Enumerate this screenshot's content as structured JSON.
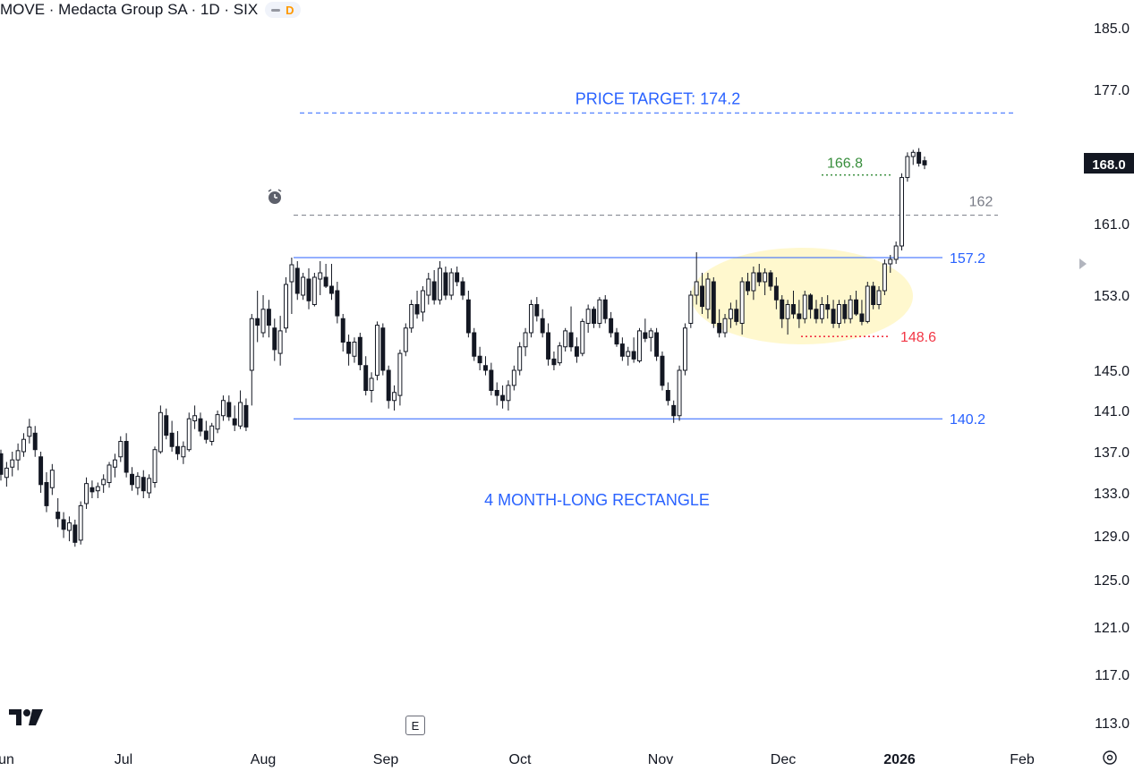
{
  "header": {
    "title": "MOVE · Medacta Group SA · 1D · SIX",
    "interval_badge": "D"
  },
  "chart_data": {
    "type": "candlestick",
    "ylim": [
      111,
      187
    ],
    "y_ticks": [
      "185.0",
      "177.0",
      "161.0",
      "153.0",
      "145.0",
      "141.0",
      "137.0",
      "133.0",
      "129.0",
      "125.0",
      "121.0",
      "117.0",
      "113.0"
    ],
    "y_tick_values": [
      185,
      177,
      161,
      153,
      145,
      141,
      137,
      133,
      129,
      125,
      121,
      117,
      113
    ],
    "x_ticks": [
      "Jun",
      "Jul",
      "Aug",
      "Sep",
      "Oct",
      "Nov",
      "Dec",
      "2026",
      "Feb"
    ],
    "last_price": "168.0",
    "levels": [
      {
        "name": "price-target",
        "value": 174.2,
        "label": "PRICE TARGET: 174.2",
        "style": "dashed",
        "color": "#2962ff"
      },
      {
        "name": "level-166-8",
        "value": 166.8,
        "label": "166.8",
        "style": "dotted",
        "color": "#388e3c"
      },
      {
        "name": "level-162",
        "value": 162.0,
        "label": "162",
        "style": "dashed",
        "color": "#787b86"
      },
      {
        "name": "rectangle-top",
        "value": 157.2,
        "label": "157.2",
        "style": "solid",
        "color": "#2962ff"
      },
      {
        "name": "level-148-6",
        "value": 148.6,
        "label": "148.6",
        "style": "dotted",
        "color": "#f23645"
      },
      {
        "name": "rectangle-bottom",
        "value": 140.2,
        "label": "140.2",
        "style": "solid",
        "color": "#2962ff"
      }
    ],
    "annotation": "4 MONTH-LONG RECTANGLE",
    "candles": [
      [
        136.8,
        137.2,
        134.2,
        134.8
      ],
      [
        134.5,
        136.0,
        133.6,
        135.4
      ],
      [
        135.5,
        137.0,
        134.6,
        136.2
      ],
      [
        136.2,
        137.8,
        135.2,
        137.1
      ],
      [
        137.0,
        138.8,
        136.5,
        138.2
      ],
      [
        138.5,
        140.2,
        137.8,
        139.4
      ],
      [
        138.8,
        139.5,
        136.5,
        137.2
      ],
      [
        136.5,
        137.0,
        133.0,
        133.8
      ],
      [
        134.0,
        135.0,
        131.2,
        131.8
      ],
      [
        133.5,
        135.8,
        132.8,
        135.2
      ],
      [
        131.2,
        132.5,
        129.8,
        130.6
      ],
      [
        130.5,
        131.2,
        128.8,
        129.6
      ],
      [
        129.5,
        130.8,
        128.5,
        130.2
      ],
      [
        130.0,
        130.5,
        128.0,
        128.4
      ],
      [
        128.6,
        132.2,
        128.2,
        131.8
      ],
      [
        132.0,
        134.5,
        131.5,
        133.9
      ],
      [
        133.5,
        134.2,
        132.5,
        133.1
      ],
      [
        133.2,
        134.0,
        132.5,
        133.6
      ],
      [
        133.8,
        134.8,
        133.0,
        134.3
      ],
      [
        134.0,
        136.0,
        133.5,
        135.7
      ],
      [
        135.5,
        136.8,
        134.5,
        136.2
      ],
      [
        136.5,
        138.5,
        136.0,
        138.0
      ],
      [
        138.0,
        138.8,
        134.5,
        135.0
      ],
      [
        134.8,
        135.5,
        133.2,
        133.8
      ],
      [
        133.5,
        135.0,
        132.8,
        134.6
      ],
      [
        134.5,
        135.2,
        132.5,
        133.2
      ],
      [
        133.0,
        134.8,
        132.5,
        134.4
      ],
      [
        134.0,
        137.5,
        133.5,
        137.2
      ],
      [
        137.0,
        141.5,
        136.8,
        140.8
      ],
      [
        140.5,
        141.2,
        138.2,
        138.6
      ],
      [
        138.8,
        140.0,
        137.0,
        137.5
      ],
      [
        137.5,
        139.0,
        136.2,
        136.8
      ],
      [
        136.5,
        138.0,
        135.8,
        137.5
      ],
      [
        137.2,
        140.8,
        137.0,
        140.2
      ],
      [
        140.0,
        141.5,
        139.2,
        140.5
      ],
      [
        140.2,
        140.8,
        138.5,
        139.0
      ],
      [
        139.0,
        140.0,
        137.8,
        138.2
      ],
      [
        138.0,
        139.8,
        137.6,
        139.5
      ],
      [
        139.2,
        141.0,
        138.8,
        140.6
      ],
      [
        140.5,
        142.5,
        140.0,
        142.0
      ],
      [
        141.8,
        142.5,
        140.0,
        140.4
      ],
      [
        140.2,
        141.5,
        139.0,
        139.6
      ],
      [
        139.5,
        143.0,
        139.2,
        141.8
      ],
      [
        141.5,
        142.2,
        139.0,
        139.4
      ],
      [
        145.0,
        151.0,
        141.5,
        150.5
      ],
      [
        150.5,
        153.5,
        148.0,
        149.8
      ],
      [
        149.0,
        153.0,
        148.5,
        151.5
      ],
      [
        151.5,
        152.5,
        148.5,
        149.8
      ],
      [
        149.5,
        150.5,
        146.0,
        147.2
      ],
      [
        146.8,
        150.8,
        145.5,
        149.2
      ],
      [
        149.5,
        155.0,
        149.0,
        154.2
      ],
      [
        154.5,
        157.2,
        151.0,
        156.4
      ],
      [
        156.0,
        156.8,
        152.5,
        153.2
      ],
      [
        153.0,
        155.5,
        152.5,
        155.0
      ],
      [
        154.8,
        156.0,
        151.5,
        152.4
      ],
      [
        152.0,
        155.5,
        151.8,
        155.0
      ],
      [
        154.8,
        156.8,
        153.0,
        155.5
      ],
      [
        155.0,
        156.5,
        153.8,
        154.0
      ],
      [
        154.0,
        156.5,
        152.5,
        153.2
      ],
      [
        153.5,
        154.5,
        150.0,
        150.8
      ],
      [
        150.5,
        151.0,
        147.0,
        148.0
      ],
      [
        148.0,
        148.8,
        145.5,
        146.8
      ],
      [
        146.5,
        148.5,
        145.8,
        148.0
      ],
      [
        148.5,
        149.0,
        145.0,
        145.6
      ],
      [
        145.5,
        146.5,
        142.5,
        143.0
      ],
      [
        143.0,
        144.8,
        141.8,
        144.2
      ],
      [
        144.5,
        150.2,
        144.0,
        149.8
      ],
      [
        149.5,
        150.0,
        144.5,
        145.0
      ],
      [
        145.0,
        145.5,
        141.2,
        142.0
      ],
      [
        142.0,
        143.5,
        141.0,
        142.8
      ],
      [
        142.5,
        147.2,
        141.5,
        146.8
      ],
      [
        147.0,
        150.0,
        146.5,
        149.5
      ],
      [
        149.5,
        152.5,
        149.0,
        152.0
      ],
      [
        152.0,
        153.5,
        150.5,
        151.0
      ],
      [
        151.2,
        154.0,
        150.2,
        153.5
      ],
      [
        153.0,
        155.5,
        152.0,
        154.8
      ],
      [
        154.5,
        155.8,
        152.0,
        152.5
      ],
      [
        152.5,
        156.8,
        152.0,
        156.0
      ],
      [
        155.5,
        156.2,
        152.5,
        153.0
      ],
      [
        153.0,
        156.0,
        152.5,
        155.5
      ],
      [
        155.5,
        156.2,
        154.0,
        154.5
      ],
      [
        154.5,
        155.0,
        152.5,
        153.0
      ],
      [
        152.5,
        153.5,
        148.5,
        149.0
      ],
      [
        149.0,
        149.5,
        146.0,
        146.5
      ],
      [
        146.5,
        147.5,
        145.0,
        145.8
      ],
      [
        145.5,
        146.5,
        144.5,
        145.0
      ],
      [
        145.0,
        145.8,
        142.5,
        143.0
      ],
      [
        143.0,
        143.8,
        141.5,
        142.5
      ],
      [
        142.5,
        143.5,
        141.2,
        142.0
      ],
      [
        142.0,
        144.0,
        141.0,
        143.5
      ],
      [
        143.5,
        145.5,
        143.0,
        145.0
      ],
      [
        145.0,
        148.0,
        144.5,
        147.5
      ],
      [
        147.5,
        149.5,
        146.5,
        149.0
      ],
      [
        149.0,
        152.5,
        148.5,
        152.0
      ],
      [
        152.0,
        152.8,
        150.2,
        150.8
      ],
      [
        150.5,
        151.5,
        148.5,
        149.0
      ],
      [
        149.0,
        150.0,
        145.5,
        146.2
      ],
      [
        146.2,
        147.0,
        145.0,
        145.6
      ],
      [
        145.8,
        148.0,
        145.5,
        147.6
      ],
      [
        147.5,
        149.5,
        147.0,
        149.2
      ],
      [
        149.0,
        151.8,
        147.0,
        147.5
      ],
      [
        147.5,
        148.5,
        145.8,
        146.5
      ],
      [
        146.8,
        150.5,
        146.5,
        150.2
      ],
      [
        150.0,
        152.0,
        149.0,
        151.5
      ],
      [
        151.5,
        151.8,
        149.5,
        150.0
      ],
      [
        150.0,
        152.8,
        149.5,
        152.5
      ],
      [
        152.5,
        153.0,
        150.0,
        150.5
      ],
      [
        150.5,
        151.2,
        148.5,
        149.0
      ],
      [
        149.0,
        149.5,
        147.5,
        147.8
      ],
      [
        147.8,
        148.5,
        146.0,
        146.5
      ],
      [
        146.5,
        147.5,
        145.5,
        147.0
      ],
      [
        147.0,
        148.5,
        145.8,
        146.2
      ],
      [
        146.0,
        149.5,
        145.8,
        149.2
      ],
      [
        149.0,
        150.5,
        148.0,
        148.4
      ],
      [
        148.5,
        149.5,
        147.0,
        149.2
      ],
      [
        149.0,
        149.5,
        146.0,
        146.5
      ],
      [
        146.5,
        147.0,
        143.0,
        143.5
      ],
      [
        143.0,
        143.8,
        141.5,
        142.0
      ],
      [
        141.5,
        142.0,
        139.8,
        140.5
      ],
      [
        140.5,
        145.5,
        140.0,
        145.0
      ],
      [
        145.0,
        150.0,
        144.5,
        149.5
      ],
      [
        150.0,
        153.5,
        149.5,
        153.0
      ],
      [
        153.0,
        157.8,
        152.0,
        154.5
      ],
      [
        154.0,
        155.5,
        151.0,
        151.8
      ],
      [
        151.5,
        155.5,
        150.5,
        154.8
      ],
      [
        154.5,
        155.0,
        149.5,
        150.0
      ],
      [
        150.0,
        151.5,
        148.5,
        149.0
      ],
      [
        149.0,
        151.0,
        148.5,
        150.5
      ],
      [
        150.5,
        152.2,
        149.5,
        151.5
      ],
      [
        151.5,
        152.5,
        149.8,
        150.2
      ],
      [
        150.0,
        155.0,
        148.8,
        154.5
      ],
      [
        154.5,
        155.5,
        153.0,
        153.5
      ],
      [
        153.5,
        156.2,
        152.5,
        155.5
      ],
      [
        155.5,
        156.5,
        154.0,
        154.5
      ],
      [
        154.5,
        156.0,
        153.0,
        155.5
      ],
      [
        155.5,
        155.8,
        153.5,
        154.0
      ],
      [
        154.0,
        155.0,
        151.5,
        152.5
      ],
      [
        152.5,
        153.0,
        149.5,
        150.5
      ],
      [
        150.5,
        152.5,
        148.8,
        152.0
      ],
      [
        152.0,
        153.5,
        150.5,
        151.0
      ],
      [
        151.0,
        152.5,
        149.5,
        150.5
      ],
      [
        150.5,
        153.5,
        150.0,
        153.0
      ],
      [
        153.0,
        153.2,
        150.5,
        151.5
      ],
      [
        151.5,
        152.5,
        150.0,
        150.5
      ],
      [
        150.5,
        152.8,
        150.0,
        152.0
      ],
      [
        152.0,
        153.0,
        150.5,
        151.5
      ],
      [
        151.5,
        152.5,
        149.5,
        150.0
      ],
      [
        150.0,
        152.5,
        149.5,
        152.0
      ],
      [
        152.0,
        152.5,
        150.0,
        150.5
      ],
      [
        150.5,
        153.0,
        150.0,
        152.5
      ],
      [
        152.5,
        153.5,
        150.8,
        151.0
      ],
      [
        151.0,
        152.5,
        149.8,
        150.2
      ],
      [
        150.2,
        154.5,
        150.0,
        154.0
      ],
      [
        154.0,
        154.5,
        151.5,
        152.0
      ],
      [
        152.0,
        154.0,
        151.5,
        153.5
      ],
      [
        153.5,
        157.0,
        153.0,
        156.5
      ],
      [
        156.5,
        157.5,
        155.5,
        157.0
      ],
      [
        157.0,
        159.0,
        156.5,
        158.5
      ],
      [
        158.5,
        167.0,
        158.0,
        166.5
      ],
      [
        166.5,
        169.5,
        166.0,
        169.0
      ],
      [
        169.0,
        169.8,
        168.0,
        169.5
      ],
      [
        169.5,
        170.0,
        167.8,
        168.2
      ],
      [
        168.5,
        169.0,
        167.5,
        168.0
      ]
    ]
  }
}
